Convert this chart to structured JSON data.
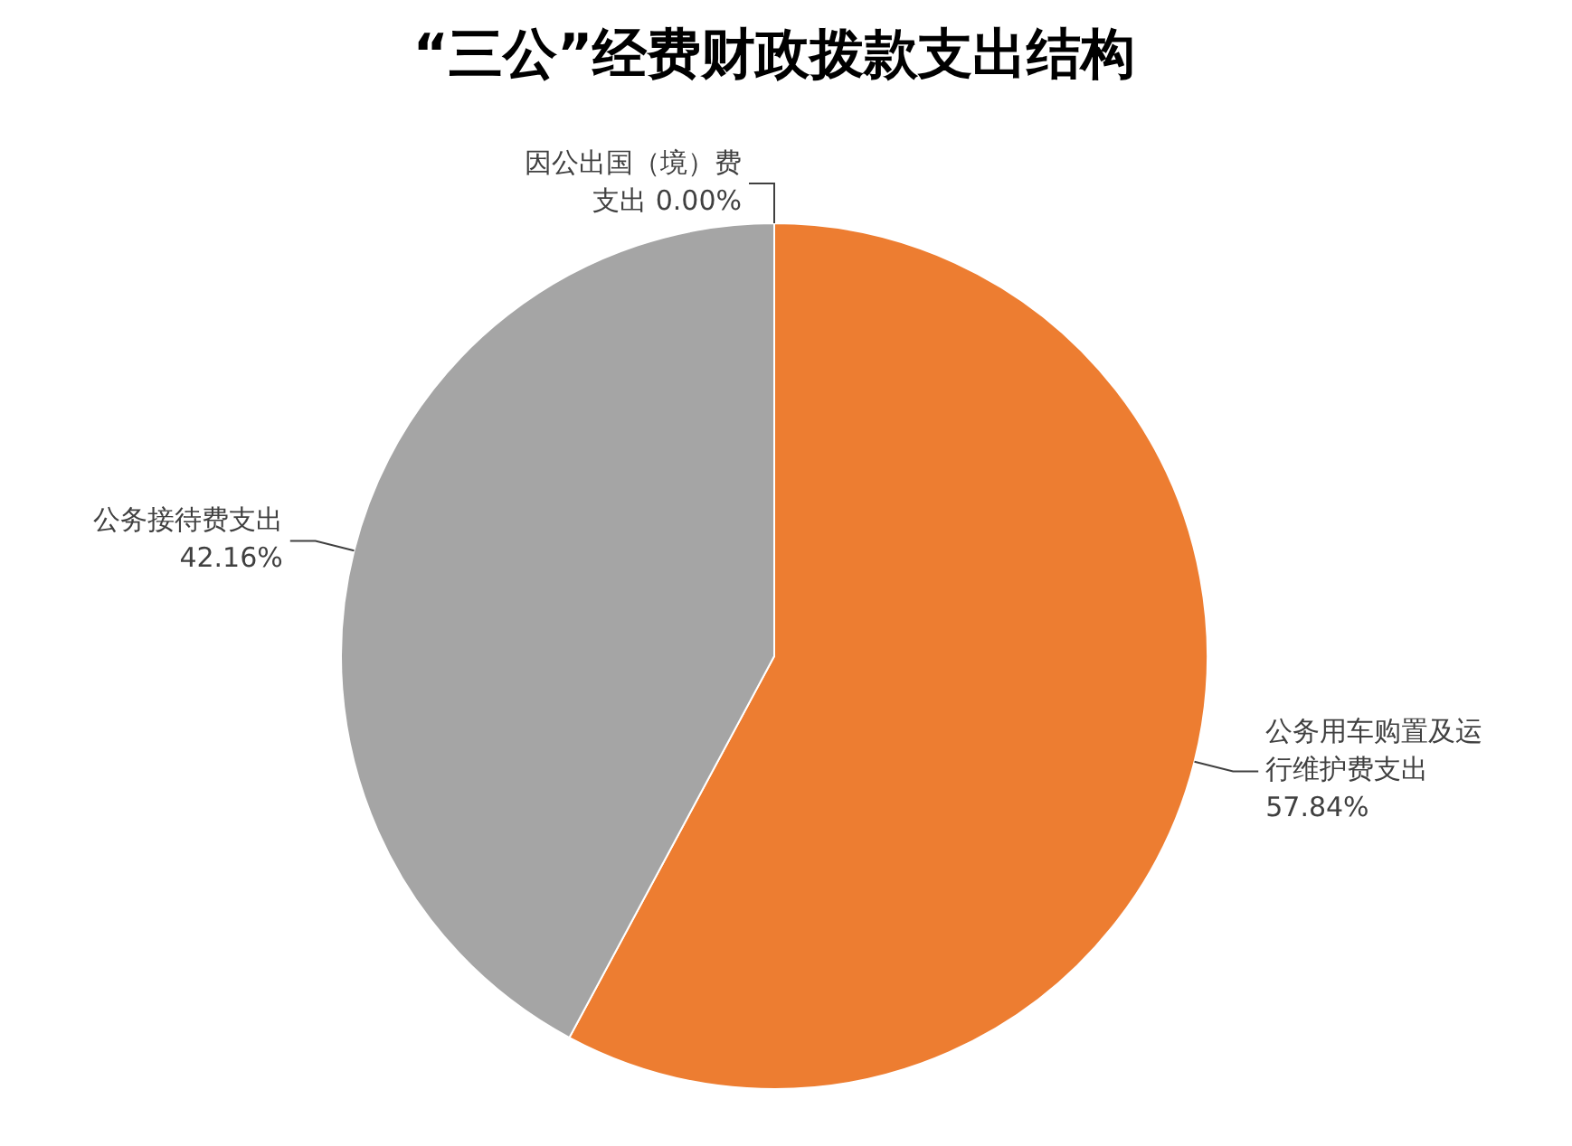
{
  "chart_data": {
    "type": "pie",
    "title": "“三公”经费财政拨款支出结构",
    "categories": [
      "因公出国（境）费支出",
      "公务用车购置及运行维护费支出",
      "公务接待费支出"
    ],
    "values": [
      0,
      57.84,
      42.16
    ],
    "value_labels": [
      "0.00%",
      "57.84%",
      "42.16%"
    ],
    "colors": [
      "#5b9bd5",
      "#ed7d31",
      "#a5a5a5"
    ],
    "legend": false
  }
}
